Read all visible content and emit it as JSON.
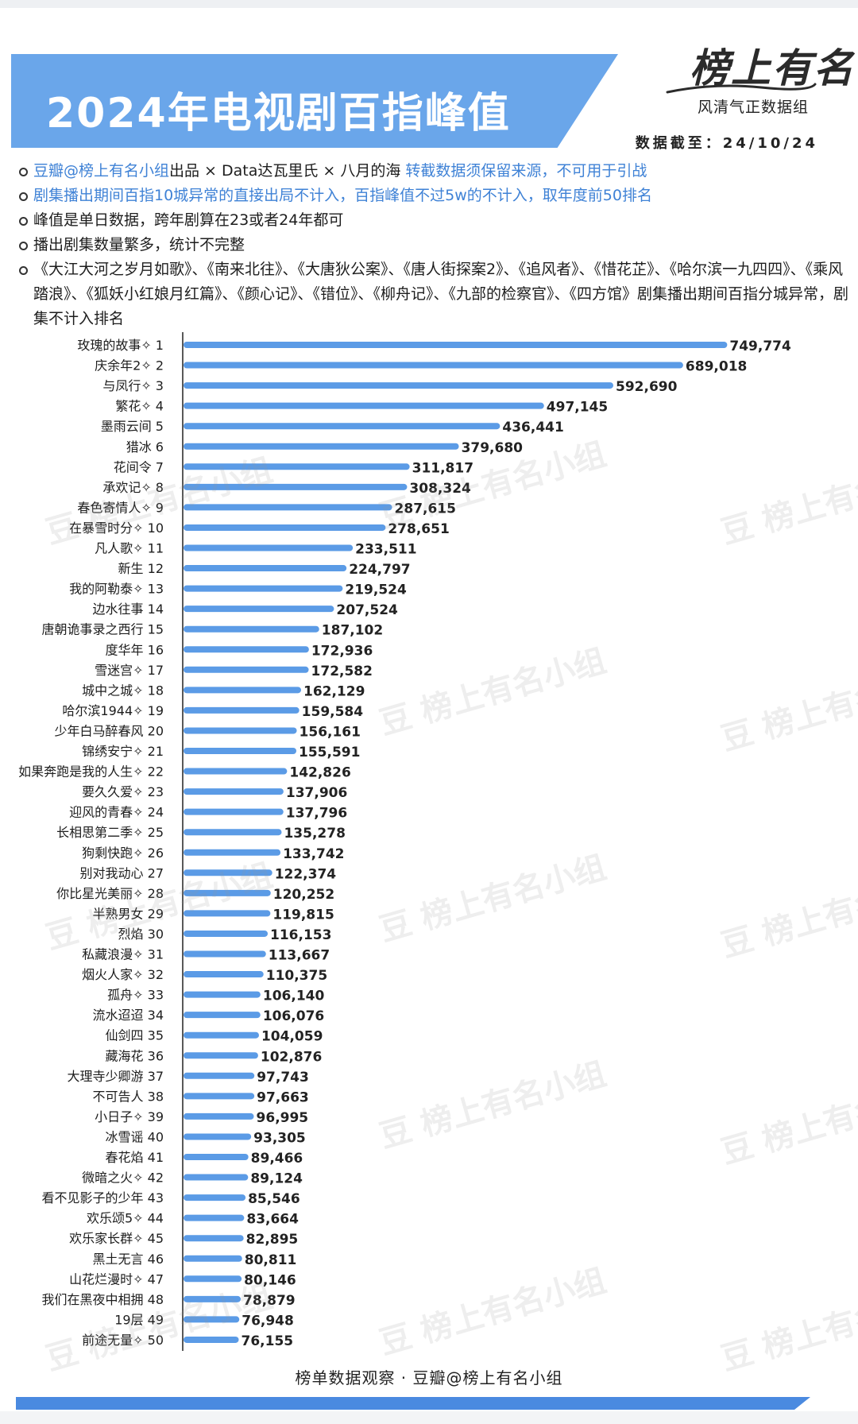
{
  "header": {
    "title": "2024年电视剧百指峰值",
    "logo_main": "榜上有名",
    "logo_sub": "风清气正数据组",
    "asof": "数据截至：24/10/24"
  },
  "notes": [
    {
      "parts": [
        {
          "text": "豆瓣@榜上有名小组",
          "blue": true
        },
        {
          "text": "出品 × Data达瓦里氏 × 八月的海 ",
          "blue": false
        },
        {
          "text": "转截数据须保留来源，不可用于引战",
          "blue": true
        }
      ]
    },
    {
      "parts": [
        {
          "text": "剧集播出期间百指10城异常的直接出局不计入，百指峰值不过5w的不计入，取年度前50排名",
          "blue": true
        }
      ]
    },
    {
      "parts": [
        {
          "text": "峰值是单日数据，跨年剧算在23或者24年都可",
          "blue": false
        }
      ]
    },
    {
      "parts": [
        {
          "text": "播出剧集数量繁多，统计不完整",
          "blue": false
        }
      ]
    },
    {
      "parts": [
        {
          "text": "《大江大河之岁月如歌》、《南来北往》、《大唐狄公案》、《唐人街探案2》、《追风者》、《惜花芷》、《哈尔滨一九四四》、《乘风踏浪》、《狐妖小红娘月红篇》、《颜心记》、《错位》、《柳舟记》、《九部的检察官》、《四方馆》剧集播出期间百指分城异常，剧集不计入排名",
          "blue": false
        }
      ]
    }
  ],
  "watermark_text": "豆 榜上有名小组",
  "footer": "榜单数据观察 · 豆瓣@榜上有名小组",
  "colors": {
    "bar": "#5b9be6",
    "banner": "#6aa6ea",
    "accent": "#3f82d6"
  },
  "chart_data": {
    "type": "bar",
    "orientation": "horizontal",
    "categories": [
      "玫瑰的故事✧ 1",
      "庆余年2✧ 2",
      "与凤行✧ 3",
      "繁花✧ 4",
      "墨雨云间 5",
      "猎冰 6",
      "花间令 7",
      "承欢记✧ 8",
      "春色寄情人✧ 9",
      "在暴雪时分✧ 10",
      "凡人歌✧ 11",
      "新生 12",
      "我的阿勒泰✧ 13",
      "边水往事 14",
      "唐朝诡事录之西行 15",
      "度华年 16",
      "雪迷宫✧ 17",
      "城中之城✧ 18",
      "哈尔滨1944✧ 19",
      "少年白马醉春风 20",
      "锦绣安宁✧ 21",
      "如果奔跑是我的人生✧ 22",
      "要久久爱✧ 23",
      "迎风的青春✧ 24",
      "长相思第二季✧ 25",
      "狗剩快跑✧ 26",
      "别对我动心 27",
      "你比星光美丽✧ 28",
      "半熟男女 29",
      "烈焰 30",
      "私藏浪漫✧ 31",
      "烟火人家✧ 32",
      "孤舟✧ 33",
      "流水迢迢 34",
      "仙剑四 35",
      "藏海花 36",
      "大理寺少卿游 37",
      "不可告人 38",
      "小日子✧ 39",
      "冰雪谣 40",
      "春花焰 41",
      "微暗之火✧ 42",
      "看不见影子的少年 43",
      "欢乐颂5✧ 44",
      "欢乐家长群✧ 45",
      "黑土无言 46",
      "山花烂漫时✧ 47",
      "我们在黑夜中相拥 48",
      "19层 49",
      "前途无量✧ 50"
    ],
    "values": [
      749774,
      689018,
      592690,
      497145,
      436441,
      379680,
      311817,
      308324,
      287615,
      278651,
      233511,
      224797,
      219524,
      207524,
      187102,
      172936,
      172582,
      162129,
      159584,
      156161,
      155591,
      142826,
      137906,
      137796,
      135278,
      133742,
      122374,
      120252,
      119815,
      116153,
      113667,
      110375,
      106140,
      106076,
      104059,
      102876,
      97743,
      97663,
      96995,
      93305,
      89466,
      89124,
      85546,
      83664,
      82895,
      80811,
      80146,
      78879,
      76948,
      76155
    ],
    "value_labels": [
      "749,774",
      "689,018",
      "592,690",
      "497,145",
      "436,441",
      "379,680",
      "311,817",
      "308,324",
      "287,615",
      "278,651",
      "233,511",
      "224,797",
      "219,524",
      "207,524",
      "187,102",
      "172,936",
      "172,582",
      "162,129",
      "159,584",
      "156,161",
      "155,591",
      "142,826",
      "137,906",
      "137,796",
      "135,278",
      "133,742",
      "122,374",
      "120,252",
      "119,815",
      "116,153",
      "113,667",
      "110,375",
      "106,140",
      "106,076",
      "104,059",
      "102,876",
      "97,743",
      "97,663",
      "96,995",
      "93,305",
      "89,466",
      "89,124",
      "85,546",
      "83,664",
      "82,895",
      "80,811",
      "80,146",
      "78,879",
      "76,948",
      "76,155"
    ],
    "title": "2024年电视剧百指峰值",
    "xlabel": "",
    "ylabel": "",
    "xlim": [
      0,
      860000
    ],
    "grid": false,
    "legend": "none"
  }
}
